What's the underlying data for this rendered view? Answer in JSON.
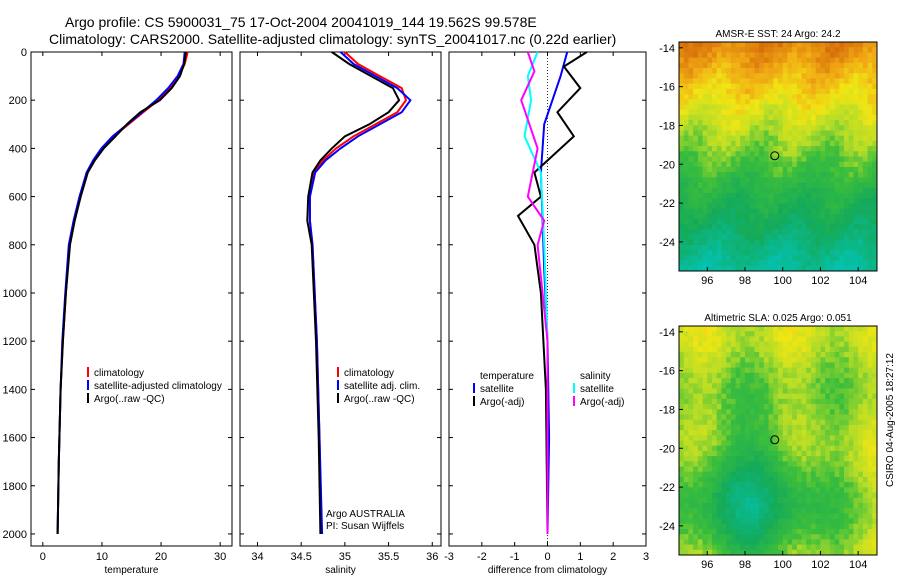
{
  "title_line1": "Argo profile: CS 5900031_75 17-Oct-2004 20041019_144 19.562S 99.578E",
  "title_line2": "Climatology: CARS2000. Satellite-adjusted climatology: synTS_20041017.nc (0.22d earlier)",
  "side_label": "CSIRO 04-Aug-2005 18:27:12",
  "chart_data": [
    {
      "type": "line",
      "id": "temperature",
      "xlabel": "temperature",
      "ylabel": "",
      "xlim": [
        -2,
        32
      ],
      "ylim": [
        2050,
        0
      ],
      "xticks": [
        0,
        10,
        20,
        30
      ],
      "yticks": [
        0,
        200,
        400,
        600,
        800,
        1000,
        1200,
        1400,
        1600,
        1800,
        2000
      ],
      "legend": [
        "climatology",
        "satellite-adjusted climatology",
        "Argo(..raw -QC)"
      ],
      "legend_colors": [
        "#ff0000",
        "#0000ff",
        "#000000"
      ],
      "series": [
        {
          "name": "climatology",
          "color": "#ff0000",
          "x": [
            24.5,
            24,
            23,
            21.5,
            19.5,
            17,
            14.5,
            12,
            10,
            8.6,
            7.5,
            6.3,
            5.3,
            4.5,
            3.9,
            3.4,
            3,
            2.7,
            2.5
          ],
          "y": [
            0,
            50,
            100,
            150,
            200,
            250,
            300,
            350,
            400,
            450,
            500,
            600,
            700,
            800,
            1000,
            1200,
            1400,
            1700,
            2000
          ]
        },
        {
          "name": "satellite-adjusted climatology",
          "color": "#0000ff",
          "x": [
            24,
            23.8,
            22.8,
            21.2,
            19.2,
            16.8,
            14.3,
            11.8,
            9.9,
            8.5,
            7.4,
            6.2,
            5.2,
            4.4,
            3.8,
            3.3,
            3,
            2.7,
            2.5
          ],
          "y": [
            0,
            50,
            100,
            150,
            200,
            250,
            300,
            350,
            400,
            450,
            500,
            600,
            700,
            800,
            1000,
            1200,
            1400,
            1700,
            2000
          ]
        },
        {
          "name": "Argo(..raw -QC)",
          "color": "#000000",
          "x": [
            24.2,
            23.9,
            23.2,
            21.8,
            19.8,
            16.5,
            14.2,
            12.3,
            10.3,
            8.8,
            7.6,
            6.4,
            5.4,
            4.6,
            3.9,
            3.4,
            3,
            2.7,
            2.5
          ],
          "y": [
            0,
            50,
            100,
            150,
            200,
            250,
            300,
            350,
            400,
            450,
            500,
            600,
            700,
            800,
            1000,
            1200,
            1400,
            1700,
            2000
          ]
        }
      ]
    },
    {
      "type": "line",
      "id": "salinity",
      "xlabel": "salinity",
      "xlim": [
        33.8,
        36.1
      ],
      "ylim": [
        2050,
        0
      ],
      "xticks": [
        34,
        34.5,
        35,
        35.5,
        36
      ],
      "legend": [
        "climatology",
        "satellite adj. clim.",
        "Argo(..raw -QC)"
      ],
      "legend_colors": [
        "#ff0000",
        "#0000ff",
        "#000000"
      ],
      "annotation": [
        "Argo AUSTRALIA",
        "PI: Susan Wijffels"
      ],
      "series": [
        {
          "name": "climatology",
          "color": "#ff0000",
          "x": [
            35.0,
            35.15,
            35.4,
            35.65,
            35.7,
            35.6,
            35.35,
            35.1,
            34.9,
            34.75,
            34.65,
            34.6,
            34.6,
            34.63,
            34.68,
            34.71,
            34.73
          ],
          "y": [
            0,
            50,
            100,
            150,
            200,
            250,
            300,
            350,
            400,
            450,
            500,
            600,
            700,
            800,
            1200,
            1600,
            2000
          ]
        },
        {
          "name": "satellite adj. clim.",
          "color": "#0000ff",
          "x": [
            34.95,
            35.1,
            35.35,
            35.6,
            35.75,
            35.65,
            35.4,
            35.15,
            34.95,
            34.78,
            34.66,
            34.6,
            34.6,
            34.63,
            34.68,
            34.71,
            34.74
          ],
          "y": [
            0,
            50,
            100,
            150,
            200,
            250,
            300,
            350,
            400,
            450,
            500,
            600,
            700,
            800,
            1200,
            1600,
            2000
          ]
        },
        {
          "name": "Argo(..raw -QC)",
          "color": "#000000",
          "x": [
            34.85,
            35.05,
            35.3,
            35.55,
            35.62,
            35.5,
            35.28,
            35.0,
            34.85,
            34.72,
            34.63,
            34.58,
            34.57,
            34.62,
            34.67,
            34.7,
            34.72
          ],
          "y": [
            0,
            50,
            100,
            150,
            200,
            250,
            300,
            350,
            400,
            450,
            500,
            600,
            700,
            800,
            1200,
            1600,
            2000
          ]
        }
      ]
    },
    {
      "type": "line",
      "id": "difference",
      "xlabel": "difference from climatology",
      "xlim": [
        -3,
        3
      ],
      "ylim": [
        2050,
        0
      ],
      "xticks": [
        -3,
        -2,
        -1,
        0,
        1,
        2,
        3
      ],
      "legend_left": [
        "temperature",
        "satellite",
        "Argo(-adj)"
      ],
      "legend_left_colors": [
        "",
        "#0000ff",
        "#000000"
      ],
      "legend_right": [
        "salinity",
        "satellite",
        "Argo(-adj)"
      ],
      "legend_right_colors": [
        "",
        "#00ffff",
        "#ff00ff"
      ],
      "series": [
        {
          "name": "temperature satellite",
          "color": "#0000ff",
          "x": [
            0.6,
            0.4,
            -0.1,
            -0.2,
            -0.15,
            -0.1,
            0,
            0.05,
            0
          ],
          "y": [
            0,
            100,
            300,
            500,
            700,
            900,
            1200,
            1600,
            2000
          ]
        },
        {
          "name": "temperature Argo(-adj)",
          "color": "#000000",
          "x": [
            1.2,
            0.5,
            1.0,
            0.3,
            0.8,
            -0.4,
            -0.2,
            -0.9,
            -0.4,
            -0.2,
            -0.05,
            0
          ],
          "y": [
            0,
            60,
            150,
            250,
            350,
            500,
            600,
            680,
            800,
            1000,
            1400,
            2000
          ]
        },
        {
          "name": "salinity satellite",
          "color": "#00ffff",
          "x": [
            -0.3,
            -0.6,
            -0.5,
            -0.7,
            -0.2,
            -0.1,
            0,
            0
          ],
          "y": [
            0,
            100,
            200,
            350,
            500,
            800,
            1200,
            2000
          ]
        },
        {
          "name": "salinity Argo(-adj)",
          "color": "#ff00ff",
          "x": [
            -0.6,
            -0.4,
            -0.8,
            -0.3,
            -0.6,
            -0.1,
            -0.3,
            0,
            0
          ],
          "y": [
            0,
            80,
            200,
            400,
            600,
            700,
            800,
            1200,
            2000
          ]
        }
      ]
    },
    {
      "type": "heatmap",
      "id": "sst-map",
      "title": "AMSR-E SST: 24 Argo: 24.2",
      "xticks": [
        96,
        98,
        100,
        102,
        104
      ],
      "yticks": [
        -14,
        -16,
        -18,
        -20,
        -22,
        -24
      ],
      "xlim": [
        94.5,
        105
      ],
      "ylim": [
        -25.5,
        -13.7
      ],
      "marker": {
        "lon": 99.578,
        "lat": -19.562
      }
    },
    {
      "type": "heatmap",
      "id": "sla-map",
      "title": "Altimetric SLA: 0.025 Argo: 0.051",
      "xticks": [
        96,
        98,
        100,
        102,
        104
      ],
      "yticks": [
        -14,
        -16,
        -18,
        -20,
        -22,
        -24
      ],
      "xlim": [
        94.5,
        105
      ],
      "ylim": [
        -25.5,
        -13.7
      ],
      "marker": {
        "lon": 99.578,
        "lat": -19.562
      }
    }
  ]
}
